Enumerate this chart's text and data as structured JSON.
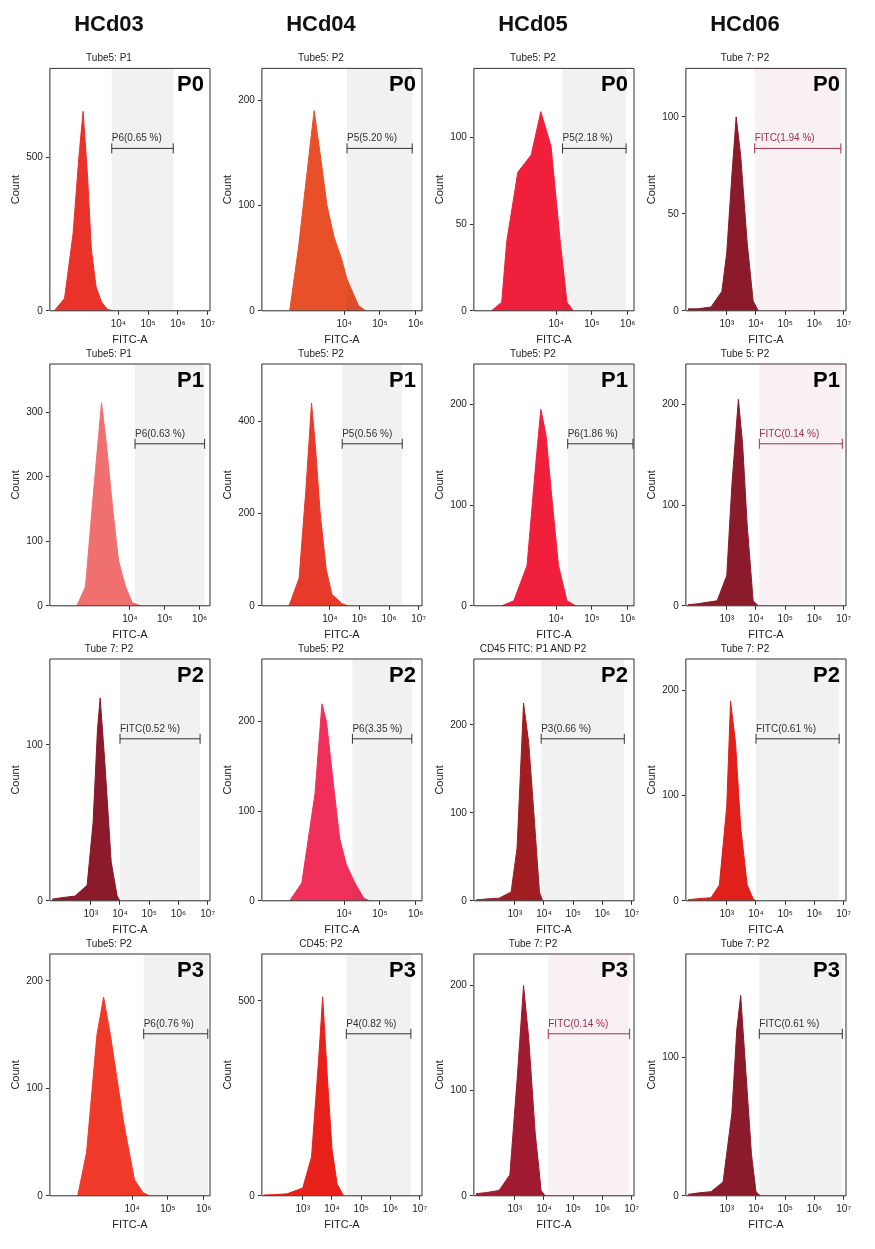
{
  "chart_data": [
    {
      "type": "area",
      "title": "HCd03",
      "subtitle": "Tube5: P1",
      "xlabel": "FITC-A",
      "ylabel": "Count",
      "log": "x",
      "color": "#e8322a",
      "xlim": [
        50,
        12000000
      ],
      "xticks": [
        {
          "value": 10000,
          "label": "10⁴"
        },
        {
          "value": 100000,
          "label": "10⁵"
        },
        {
          "value": 1000000,
          "label": "10⁶"
        },
        {
          "value": 10000000,
          "label": "10⁷"
        }
      ],
      "ylim": [
        0,
        790
      ],
      "yticks": [
        0,
        500
      ],
      "x": [
        70,
        155,
        300,
        470,
        653,
        908,
        1240,
        1770,
        2670,
        4220,
        6570
      ],
      "values": [
        0,
        40,
        250,
        500,
        650,
        450,
        200,
        80,
        30,
        5,
        0
      ],
      "annotations": [
        "P0"
      ],
      "bands": [
        {
          "axis": "x",
          "from": 6000,
          "to": 700000,
          "label": "P6(0.65 %)",
          "color": "#333333"
        }
      ],
      "legend": false
    },
    {
      "type": "area",
      "title": "HCd04",
      "subtitle": "Tube5: P2",
      "xlabel": "FITC-A",
      "ylabel": "Count",
      "log": "x",
      "color": "#e8502a",
      "xlim": [
        50,
        1500000
      ],
      "xticks": [
        {
          "value": 10000,
          "label": "10⁴"
        },
        {
          "value": 100000,
          "label": "10⁵"
        },
        {
          "value": 1000000,
          "label": "10⁶"
        }
      ],
      "ylim": [
        0,
        230
      ],
      "yticks": [
        0,
        100,
        200
      ],
      "x": [
        300,
        528,
        908,
        1445,
        2110,
        3310,
        5180,
        8320,
        12000,
        25000,
        40000
      ],
      "values": [
        0,
        60,
        130,
        190,
        150,
        100,
        70,
        50,
        30,
        5,
        0
      ],
      "annotations": [
        "P0"
      ],
      "bands": [
        {
          "axis": "x",
          "from": 12000,
          "to": 800000,
          "label": "P5(5.20 %)",
          "color": "#333333"
        }
      ],
      "legend": false
    },
    {
      "type": "area",
      "title": "HCd05",
      "subtitle": "Tube5: P2",
      "xlabel": "FITC-A",
      "ylabel": "Count",
      "log": "x",
      "color": "#f0203c",
      "xlim": [
        50,
        1500000
      ],
      "xticks": [
        {
          "value": 10000,
          "label": "10⁴"
        },
        {
          "value": 100000,
          "label": "10⁵"
        },
        {
          "value": 1000000,
          "label": "10⁶"
        }
      ],
      "ylim": [
        0,
        140
      ],
      "yticks": [
        0,
        50,
        100
      ],
      "x": [
        155,
        300,
        414,
        845,
        2000,
        3720,
        7190,
        13000,
        20000,
        30000
      ],
      "values": [
        0,
        5,
        40,
        80,
        90,
        115,
        95,
        40,
        5,
        0
      ],
      "annotations": [
        "P0"
      ],
      "bands": [
        {
          "axis": "x",
          "from": 15000,
          "to": 900000,
          "label": "P5(2.18 %)",
          "color": "#333333"
        }
      ],
      "legend": false
    },
    {
      "type": "area",
      "title": "HCd06",
      "subtitle": "Tube 7: P2",
      "xlabel": "FITC-A",
      "ylabel": "Count",
      "log": "x",
      "color": "#8b1a2a",
      "xlim": [
        40,
        12000000
      ],
      "xticks": [
        {
          "value": 1000,
          "label": "10³"
        },
        {
          "value": 10000,
          "label": "10⁴"
        },
        {
          "value": 100000,
          "label": "10⁵"
        },
        {
          "value": 1000000,
          "label": "10⁶"
        },
        {
          "value": 10000000,
          "label": "10⁷"
        }
      ],
      "ylim": [
        0,
        125
      ],
      "yticks": [
        0,
        50,
        100
      ],
      "x": [
        47,
        100,
        290,
        680,
        1000,
        1500,
        2100,
        3000,
        5000,
        8000,
        12000
      ],
      "values": [
        1,
        1,
        2,
        10,
        30,
        70,
        100,
        80,
        35,
        5,
        0
      ],
      "annotations": [
        "P0"
      ],
      "bands": [
        {
          "axis": "x",
          "from": 9000,
          "to": 8000000,
          "label": "FITC(1.94 %)",
          "color": "#a0304a"
        }
      ],
      "legend": false
    },
    {
      "type": "area",
      "subtitle": "Tube5: P1",
      "xlabel": "FITC-A",
      "ylabel": "Count",
      "log": "x",
      "color": "#f07070",
      "xlim": [
        50,
        2000000
      ],
      "xticks": [
        {
          "value": 10000,
          "label": "10⁴"
        },
        {
          "value": 100000,
          "label": "10⁵"
        },
        {
          "value": 1000000,
          "label": "10⁶"
        }
      ],
      "ylim": [
        0,
        375
      ],
      "yticks": [
        0,
        100,
        200,
        300
      ],
      "x": [
        300,
        528,
        908,
        1530,
        2110,
        3200,
        4700,
        7450,
        11600,
        20000
      ],
      "values": [
        0,
        30,
        180,
        315,
        250,
        150,
        70,
        30,
        5,
        0
      ],
      "annotations": [
        "P1"
      ],
      "bands": [
        {
          "axis": "x",
          "from": 14000,
          "to": 1400000,
          "label": "P6(0.63 %)",
          "color": "#333333"
        }
      ],
      "legend": false
    },
    {
      "type": "area",
      "subtitle": "Tube5: P2",
      "xlabel": "FITC-A",
      "ylabel": "Count",
      "log": "x",
      "color": "#e83a2a",
      "xlim": [
        50,
        13000000
      ],
      "xticks": [
        {
          "value": 10000,
          "label": "10⁴"
        },
        {
          "value": 100000,
          "label": "10⁵"
        },
        {
          "value": 1000000,
          "label": "10⁶"
        },
        {
          "value": 10000000,
          "label": "10⁷"
        }
      ],
      "ylim": [
        0,
        525
      ],
      "yticks": [
        0,
        200,
        400
      ],
      "x": [
        414,
        908,
        1530,
        2390,
        3200,
        4700,
        7450,
        11600,
        25000,
        40000
      ],
      "values": [
        0,
        60,
        250,
        440,
        350,
        200,
        80,
        25,
        5,
        0
      ],
      "annotations": [
        "P1"
      ],
      "bands": [
        {
          "axis": "x",
          "from": 26000,
          "to": 2800000,
          "label": "P5(0.56 %)",
          "color": "#333333"
        }
      ],
      "legend": false
    },
    {
      "type": "area",
      "subtitle": "Tube5: P2",
      "xlabel": "FITC-A",
      "ylabel": "Count",
      "log": "x",
      "color": "#f0203c",
      "xlim": [
        50,
        1500000
      ],
      "xticks": [
        {
          "value": 10000,
          "label": "10⁴"
        },
        {
          "value": 100000,
          "label": "10⁵"
        },
        {
          "value": 1000000,
          "label": "10⁶"
        }
      ],
      "ylim": [
        0,
        240
      ],
      "yticks": [
        0,
        100,
        200
      ],
      "x": [
        300,
        653,
        1530,
        2670,
        3720,
        5180,
        7450,
        11600,
        20000,
        35000
      ],
      "values": [
        0,
        5,
        40,
        140,
        195,
        170,
        110,
        40,
        5,
        0
      ],
      "annotations": [
        "P1"
      ],
      "bands": [
        {
          "axis": "x",
          "from": 21000,
          "to": 1400000,
          "label": "P6(1.86 %)",
          "color": "#333333"
        }
      ],
      "legend": false
    },
    {
      "type": "area",
      "subtitle": "Tube 5: P2",
      "xlabel": "FITC-A",
      "ylabel": "Count",
      "log": "x",
      "color": "#8b1a2a",
      "xlim": [
        40,
        12000000
      ],
      "xticks": [
        {
          "value": 1000,
          "label": "10³"
        },
        {
          "value": 10000,
          "label": "10⁴"
        },
        {
          "value": 100000,
          "label": "10⁵"
        },
        {
          "value": 1000000,
          "label": "10⁶"
        },
        {
          "value": 10000000,
          "label": "10⁷"
        }
      ],
      "ylim": [
        0,
        240
      ],
      "yticks": [
        0,
        100,
        200
      ],
      "x": [
        47,
        100,
        470,
        1000,
        1500,
        2500,
        3500,
        5000,
        8000,
        12000
      ],
      "values": [
        1,
        2,
        5,
        30,
        120,
        205,
        160,
        80,
        5,
        0
      ],
      "annotations": [
        "P1"
      ],
      "bands": [
        {
          "axis": "x",
          "from": 13000,
          "to": 9000000,
          "label": "FITC(0.14 %)",
          "color": "#a0304a"
        }
      ],
      "legend": false
    },
    {
      "type": "area",
      "subtitle": "Tube 7: P2",
      "xlabel": "FITC-A",
      "ylabel": "Count",
      "log": "x",
      "color": "#8b1a2a",
      "xlim": [
        40,
        12000000
      ],
      "xticks": [
        {
          "value": 1000,
          "label": "10³"
        },
        {
          "value": 10000,
          "label": "10⁴"
        },
        {
          "value": 100000,
          "label": "10⁵"
        },
        {
          "value": 1000000,
          "label": "10⁶"
        },
        {
          "value": 10000000,
          "label": "10⁷"
        }
      ],
      "ylim": [
        0,
        155
      ],
      "yticks": [
        0,
        100
      ],
      "x": [
        47,
        100,
        290,
        750,
        1200,
        1700,
        2100,
        3000,
        5000,
        8000,
        10000
      ],
      "values": [
        1,
        2,
        3,
        10,
        50,
        110,
        130,
        90,
        25,
        3,
        0
      ],
      "annotations": [
        "P2"
      ],
      "bands": [
        {
          "axis": "x",
          "from": 10000,
          "to": 5500000,
          "label": "FITC(0.52 %)",
          "color": "#333333"
        }
      ],
      "legend": false
    },
    {
      "type": "area",
      "subtitle": "Tube5: P2",
      "xlabel": "FITC-A",
      "ylabel": "Count",
      "log": "x",
      "color": "#f0305a",
      "xlim": [
        50,
        1500000
      ],
      "xticks": [
        {
          "value": 10000,
          "label": "10⁴"
        },
        {
          "value": 100000,
          "label": "10⁵"
        },
        {
          "value": 1000000,
          "label": "10⁶"
        }
      ],
      "ylim": [
        0,
        270
      ],
      "yticks": [
        0,
        100,
        200
      ],
      "x": [
        300,
        653,
        1530,
        2390,
        3200,
        4700,
        7450,
        11600,
        20000,
        35000,
        50000
      ],
      "values": [
        0,
        20,
        120,
        220,
        200,
        140,
        70,
        40,
        20,
        3,
        0
      ],
      "annotations": [
        "P2"
      ],
      "bands": [
        {
          "axis": "x",
          "from": 17000,
          "to": 780000,
          "label": "P6(3.35 %)",
          "color": "#333333"
        }
      ],
      "legend": false
    },
    {
      "type": "area",
      "subtitle": "CD45 FITC: P1 AND P2",
      "xlabel": "FITC-A",
      "ylabel": "Count",
      "log": "x",
      "color": "#a01e22",
      "xlim": [
        40,
        12000000
      ],
      "xticks": [
        {
          "value": 1000,
          "label": "10³"
        },
        {
          "value": 10000,
          "label": "10⁴"
        },
        {
          "value": 100000,
          "label": "10⁵"
        },
        {
          "value": 1000000,
          "label": "10⁶"
        },
        {
          "value": 10000000,
          "label": "10⁷"
        }
      ],
      "ylim": [
        0,
        275
      ],
      "yticks": [
        0,
        100,
        200
      ],
      "x": [
        47,
        100,
        290,
        750,
        1200,
        2000,
        3000,
        4500,
        7000,
        9000
      ],
      "values": [
        1,
        2,
        3,
        10,
        60,
        225,
        180,
        100,
        10,
        0
      ],
      "annotations": [
        "P2"
      ],
      "bands": [
        {
          "axis": "x",
          "from": 8000,
          "to": 5600000,
          "label": "P3(0.66 %)",
          "color": "#333333"
        }
      ],
      "legend": false
    },
    {
      "type": "area",
      "subtitle": "Tube 7: P2",
      "xlabel": "FITC-A",
      "ylabel": "Count",
      "log": "x",
      "color": "#e0201a",
      "xlim": [
        40,
        12000000
      ],
      "xticks": [
        {
          "value": 1000,
          "label": "10³"
        },
        {
          "value": 10000,
          "label": "10⁴"
        },
        {
          "value": 100000,
          "label": "10⁵"
        },
        {
          "value": 1000000,
          "label": "10⁶"
        },
        {
          "value": 10000000,
          "label": "10⁷"
        }
      ],
      "ylim": [
        0,
        230
      ],
      "yticks": [
        0,
        100,
        200
      ],
      "x": [
        47,
        100,
        290,
        560,
        1000,
        1350,
        2000,
        3000,
        5000,
        8000,
        10000
      ],
      "values": [
        1,
        2,
        3,
        15,
        90,
        190,
        150,
        70,
        15,
        2,
        0
      ],
      "annotations": [
        "P2"
      ],
      "bands": [
        {
          "axis": "x",
          "from": 10000,
          "to": 7000000,
          "label": "FITC(0.61 %)",
          "color": "#333333"
        }
      ],
      "legend": false
    },
    {
      "type": "area",
      "subtitle": "Tube5: P2",
      "xlabel": "FITC-A",
      "ylabel": "Count",
      "log": "x",
      "color": "#ef3a2a",
      "xlim": [
        50,
        1500000
      ],
      "xticks": [
        {
          "value": 10000,
          "label": "10⁴"
        },
        {
          "value": 100000,
          "label": "10⁵"
        },
        {
          "value": 1000000,
          "label": "10⁶"
        }
      ],
      "ylim": [
        0,
        225
      ],
      "yticks": [
        0,
        100,
        200
      ],
      "x": [
        300,
        528,
        1036,
        1590,
        2450,
        3720,
        5650,
        8320,
        11600,
        20000,
        30000
      ],
      "values": [
        0,
        40,
        150,
        185,
        150,
        110,
        70,
        40,
        15,
        3,
        0
      ],
      "annotations": [
        "P3"
      ],
      "bands": [
        {
          "axis": "x",
          "from": 21000,
          "to": 1300000,
          "label": "P6(0.76 %)",
          "color": "#333333"
        }
      ],
      "legend": false
    },
    {
      "type": "area",
      "subtitle": "CD45: P2",
      "xlabel": "FITC-A",
      "ylabel": "Count",
      "log": "x",
      "color": "#e8201a",
      "xlim": [
        40,
        12000000
      ],
      "xticks": [
        {
          "value": 1000,
          "label": "10³"
        },
        {
          "value": 10000,
          "label": "10⁴"
        },
        {
          "value": 100000,
          "label": "10⁵"
        },
        {
          "value": 1000000,
          "label": "10⁶"
        },
        {
          "value": 10000000,
          "label": "10⁷"
        }
      ],
      "ylim": [
        0,
        620
      ],
      "yticks": [
        0,
        500
      ],
      "x": [
        47,
        100,
        290,
        1000,
        2000,
        3500,
        4800,
        7000,
        10000,
        15000,
        25000
      ],
      "values": [
        2,
        3,
        5,
        20,
        100,
        350,
        510,
        300,
        120,
        30,
        0
      ],
      "annotations": [
        "P3"
      ],
      "bands": [
        {
          "axis": "x",
          "from": 31000,
          "to": 5000000,
          "label": "P4(0.82 %)",
          "color": "#333333"
        }
      ],
      "legend": false
    },
    {
      "type": "area",
      "subtitle": "Tube 7: P2",
      "xlabel": "FITC-A",
      "ylabel": "Count",
      "log": "x",
      "color": "#a01a30",
      "xlim": [
        40,
        12000000
      ],
      "xticks": [
        {
          "value": 1000,
          "label": "10³"
        },
        {
          "value": 10000,
          "label": "10⁴"
        },
        {
          "value": 100000,
          "label": "10⁵"
        },
        {
          "value": 1000000,
          "label": "10⁶"
        },
        {
          "value": 10000000,
          "label": "10⁷"
        }
      ],
      "ylim": [
        0,
        230
      ],
      "yticks": [
        0,
        100,
        200
      ],
      "x": [
        47,
        100,
        290,
        680,
        1200,
        2000,
        3000,
        5000,
        8000,
        11000
      ],
      "values": [
        2,
        3,
        5,
        20,
        110,
        200,
        150,
        60,
        5,
        0
      ],
      "annotations": [
        "P3"
      ],
      "bands": [
        {
          "axis": "x",
          "from": 14000,
          "to": 8500000,
          "label": "FITC(0.14 %)",
          "color": "#a0304a"
        }
      ],
      "legend": false
    },
    {
      "type": "area",
      "subtitle": "Tube 7: P2",
      "xlabel": "FITC-A",
      "ylabel": "Count",
      "log": "x",
      "color": "#8b1a2a",
      "xlim": [
        40,
        12000000
      ],
      "xticks": [
        {
          "value": 1000,
          "label": "10³"
        },
        {
          "value": 10000,
          "label": "10⁴"
        },
        {
          "value": 100000,
          "label": "10⁵"
        },
        {
          "value": 1000000,
          "label": "10⁶"
        },
        {
          "value": 10000000,
          "label": "10⁷"
        }
      ],
      "ylim": [
        0,
        175
      ],
      "yticks": [
        0,
        100
      ],
      "x": [
        47,
        100,
        290,
        750,
        1500,
        2200,
        3000,
        4500,
        7000,
        10000,
        14000
      ],
      "values": [
        1,
        2,
        3,
        10,
        60,
        120,
        145,
        90,
        30,
        3,
        0
      ],
      "annotations": [
        "P3"
      ],
      "bands": [
        {
          "axis": "x",
          "from": 13000,
          "to": 9000000,
          "label": "FITC(0.61 %)",
          "color": "#333333"
        }
      ],
      "legend": false
    }
  ]
}
